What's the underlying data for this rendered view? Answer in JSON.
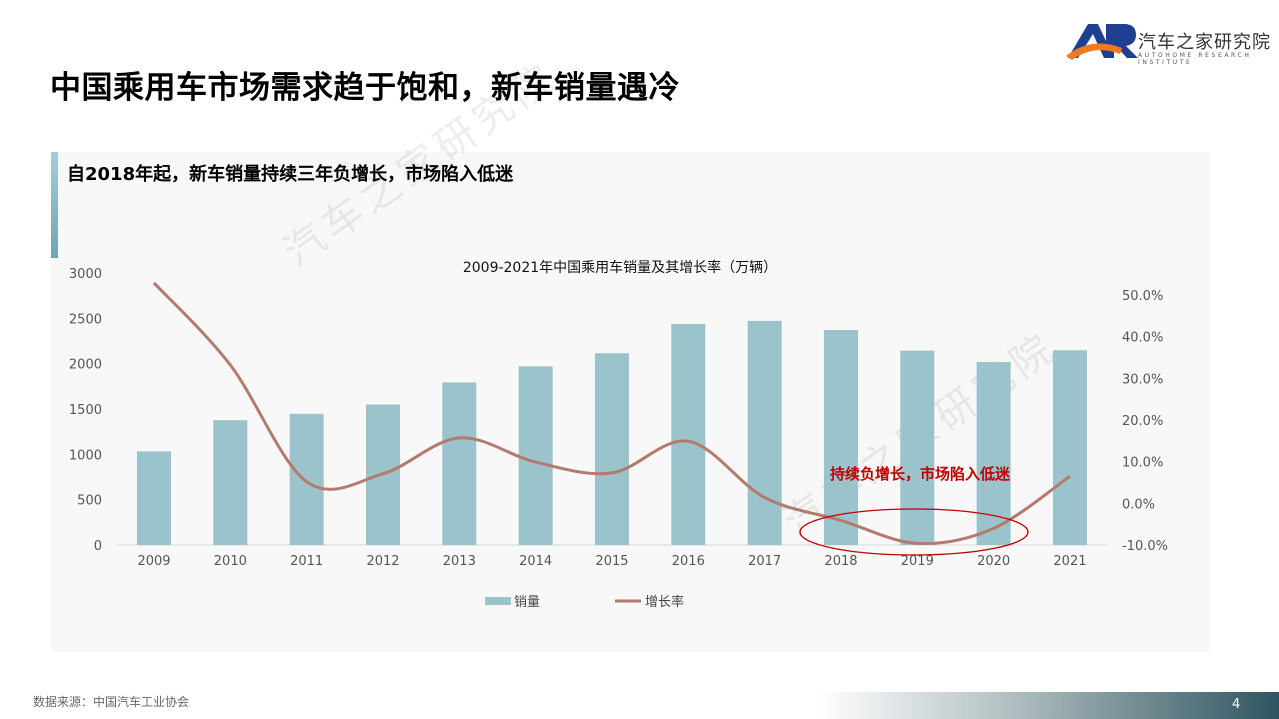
{
  "header": {
    "title": "中国乘用车市场需求趋于饱和，新车销量遇冷",
    "logo": {
      "mark": "AR",
      "name_cn": "汽车之家研究院",
      "name_en": "AUTOHOME RESEARCH INSTITUTE"
    }
  },
  "panel": {
    "subtitle": "自2018年起，新车销量持续三年负增长，市场陷入低迷"
  },
  "watermark": "汽车之家研究院",
  "chart_data": {
    "type": "bar+line",
    "title": "2009-2021年中国乘用车销量及其增长率（万辆）",
    "categories": [
      "2009",
      "2010",
      "2011",
      "2012",
      "2013",
      "2014",
      "2015",
      "2016",
      "2017",
      "2018",
      "2019",
      "2020",
      "2021"
    ],
    "series": [
      {
        "name": "销量",
        "type": "bar",
        "axis": "left",
        "color": "#9ac3cc",
        "values": [
          1033,
          1376,
          1447,
          1550,
          1793,
          1970,
          2115,
          2438,
          2472,
          2371,
          2144,
          2018,
          2148
        ]
      },
      {
        "name": "增长率",
        "type": "line",
        "axis": "right",
        "color": "#b47a6e",
        "smooth": true,
        "values": [
          52.9,
          33.2,
          5.2,
          7.1,
          15.7,
          9.9,
          7.3,
          14.9,
          1.4,
          -4.1,
          -9.6,
          -6.0,
          6.5
        ]
      }
    ],
    "left_axis": {
      "ylim": [
        0,
        3000
      ],
      "ticks": [
        "0",
        "500",
        "1000",
        "1500",
        "2000",
        "2500",
        "3000"
      ]
    },
    "right_axis": {
      "ylim": [
        -10,
        50
      ],
      "ticks": [
        "-10.0%",
        "0.0%",
        "10.0%",
        "20.0%",
        "30.0%",
        "40.0%",
        "50.0%"
      ]
    },
    "grid": false,
    "legend": "bottom",
    "annotation": {
      "text": "持续负增长，市场陷入低迷",
      "color": "#c00000",
      "highlight": [
        "2018",
        "2019",
        "2020"
      ]
    }
  },
  "footer": {
    "source": "数据来源：中国汽车工业协会",
    "page": "4"
  }
}
